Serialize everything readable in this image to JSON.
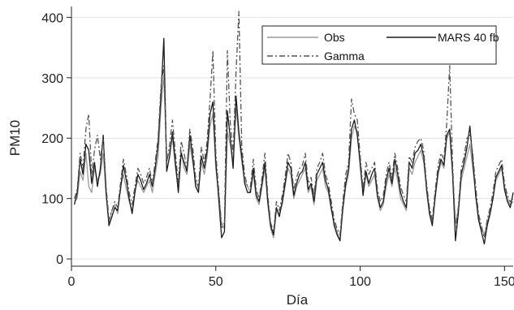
{
  "chart_data": {
    "type": "line",
    "xlabel": "Día",
    "ylabel": "PM10",
    "xlim": [
      0,
      153
    ],
    "ylim": [
      -12,
      418
    ],
    "xticks": [
      0,
      50,
      100,
      150
    ],
    "yticks": [
      0,
      100,
      200,
      300,
      400
    ],
    "grid": "horizontal",
    "legend_position": "top-right",
    "series": [
      {
        "name": "Obs",
        "color": "#9a9a9a",
        "dash": "solid",
        "x": [
          1,
          2,
          3,
          4,
          5,
          6,
          7,
          8,
          9,
          10,
          11,
          12,
          13,
          14,
          15,
          16,
          17,
          18,
          19,
          20,
          21,
          22,
          23,
          24,
          25,
          26,
          27,
          28,
          29,
          30,
          31,
          32,
          33,
          34,
          35,
          36,
          37,
          38,
          39,
          40,
          41,
          42,
          43,
          44,
          45,
          46,
          47,
          48,
          49,
          50,
          51,
          52,
          53,
          54,
          55,
          56,
          57,
          58,
          59,
          60,
          61,
          62,
          63,
          64,
          65,
          66,
          67,
          68,
          69,
          70,
          71,
          72,
          73,
          74,
          75,
          76,
          77,
          78,
          79,
          80,
          81,
          82,
          83,
          84,
          85,
          86,
          87,
          88,
          89,
          90,
          91,
          92,
          93,
          94,
          95,
          96,
          97,
          98,
          99,
          100,
          101,
          102,
          103,
          104,
          105,
          106,
          107,
          108,
          109,
          110,
          111,
          112,
          113,
          114,
          115,
          116,
          117,
          118,
          119,
          120,
          121,
          122,
          123,
          124,
          125,
          126,
          127,
          128,
          129,
          130,
          131,
          132,
          133,
          134,
          135,
          136,
          137,
          138,
          139,
          140,
          141,
          142,
          143,
          144,
          145,
          146,
          147,
          148,
          149,
          150,
          151,
          152,
          153
        ],
        "values": [
          95,
          100,
          145,
          130,
          175,
          120,
          110,
          150,
          130,
          140,
          175,
          105,
          60,
          80,
          90,
          75,
          120,
          140,
          115,
          95,
          80,
          115,
          130,
          120,
          110,
          120,
          130,
          110,
          140,
          170,
          250,
          305,
          160,
          180,
          200,
          150,
          120,
          180,
          150,
          140,
          190,
          160,
          130,
          115,
          160,
          140,
          170,
          220,
          240,
          150,
          110,
          60,
          50,
          210,
          190,
          160,
          250,
          200,
          160,
          130,
          120,
          110,
          140,
          100,
          90,
          120,
          150,
          90,
          50,
          35,
          80,
          75,
          90,
          120,
          150,
          140,
          100,
          120,
          130,
          140,
          150,
          110,
          120,
          90,
          130,
          140,
          150,
          120,
          110,
          80,
          60,
          45,
          30,
          80,
          120,
          140,
          200,
          220,
          210,
          150,
          110,
          140,
          120,
          130,
          140,
          100,
          80,
          90,
          120,
          140,
          120,
          150,
          130,
          100,
          90,
          80,
          150,
          140,
          160,
          170,
          180,
          160,
          120,
          80,
          60,
          100,
          140,
          160,
          150,
          200,
          210,
          140,
          60,
          80,
          130,
          150,
          170,
          190,
          150,
          110,
          70,
          50,
          40,
          60,
          80,
          100,
          130,
          140,
          150,
          120,
          100,
          90,
          95
        ]
      },
      {
        "name": "MARS 40 fb",
        "color": "#1a1a1a",
        "dash": "solid",
        "x": [
          1,
          2,
          3,
          4,
          5,
          6,
          7,
          8,
          9,
          10,
          11,
          12,
          13,
          14,
          15,
          16,
          17,
          18,
          19,
          20,
          21,
          22,
          23,
          24,
          25,
          26,
          27,
          28,
          29,
          30,
          31,
          32,
          33,
          34,
          35,
          36,
          37,
          38,
          39,
          40,
          41,
          42,
          43,
          44,
          45,
          46,
          47,
          48,
          49,
          50,
          51,
          52,
          53,
          54,
          55,
          56,
          57,
          58,
          59,
          60,
          61,
          62,
          63,
          64,
          65,
          66,
          67,
          68,
          69,
          70,
          71,
          72,
          73,
          74,
          75,
          76,
          77,
          78,
          79,
          80,
          81,
          82,
          83,
          84,
          85,
          86,
          87,
          88,
          89,
          90,
          91,
          92,
          93,
          94,
          95,
          96,
          97,
          98,
          99,
          100,
          101,
          102,
          103,
          104,
          105,
          106,
          107,
          108,
          109,
          110,
          111,
          112,
          113,
          114,
          115,
          116,
          117,
          118,
          119,
          120,
          121,
          122,
          123,
          124,
          125,
          126,
          127,
          128,
          129,
          130,
          131,
          132,
          133,
          134,
          135,
          136,
          137,
          138,
          139,
          140,
          141,
          142,
          143,
          144,
          145,
          146,
          147,
          148,
          149,
          150,
          151,
          152,
          153
        ],
        "values": [
          90,
          110,
          165,
          140,
          190,
          180,
          125,
          160,
          120,
          150,
          205,
          110,
          55,
          70,
          85,
          80,
          115,
          155,
          130,
          100,
          75,
          110,
          140,
          130,
          115,
          125,
          140,
          120,
          150,
          190,
          270,
          365,
          145,
          170,
          210,
          160,
          110,
          175,
          160,
          145,
          205,
          170,
          120,
          110,
          170,
          150,
          180,
          240,
          260,
          160,
          100,
          35,
          45,
          245,
          200,
          150,
          270,
          210,
          170,
          125,
          110,
          110,
          150,
          105,
          95,
          125,
          160,
          95,
          55,
          40,
          85,
          70,
          95,
          125,
          160,
          150,
          105,
          125,
          140,
          145,
          160,
          115,
          125,
          95,
          140,
          150,
          160,
          130,
          115,
          85,
          55,
          40,
          30,
          85,
          125,
          150,
          215,
          230,
          205,
          160,
          105,
          145,
          125,
          140,
          150,
          105,
          85,
          95,
          130,
          150,
          125,
          165,
          140,
          110,
          95,
          85,
          160,
          150,
          175,
          180,
          190,
          170,
          115,
          75,
          55,
          105,
          145,
          165,
          155,
          205,
          215,
          145,
          30,
          75,
          140,
          160,
          185,
          220,
          165,
          105,
          65,
          45,
          25,
          55,
          75,
          100,
          135,
          145,
          155,
          115,
          95,
          85,
          110
        ]
      },
      {
        "name": "Gamma",
        "color": "#555555",
        "dash": "dashdot",
        "x": [
          1,
          2,
          3,
          4,
          5,
          6,
          7,
          8,
          9,
          10,
          11,
          12,
          13,
          14,
          15,
          16,
          17,
          18,
          19,
          20,
          21,
          22,
          23,
          24,
          25,
          26,
          27,
          28,
          29,
          30,
          31,
          32,
          33,
          34,
          35,
          36,
          37,
          38,
          39,
          40,
          41,
          42,
          43,
          44,
          45,
          46,
          47,
          48,
          49,
          50,
          51,
          52,
          53,
          54,
          55,
          56,
          57,
          58,
          59,
          60,
          61,
          62,
          63,
          64,
          65,
          66,
          67,
          68,
          69,
          70,
          71,
          72,
          73,
          74,
          75,
          76,
          77,
          78,
          79,
          80,
          81,
          82,
          83,
          84,
          85,
          86,
          87,
          88,
          89,
          90,
          91,
          92,
          93,
          94,
          95,
          96,
          97,
          98,
          99,
          100,
          101,
          102,
          103,
          104,
          105,
          106,
          107,
          108,
          109,
          110,
          111,
          112,
          113,
          114,
          115,
          116,
          117,
          118,
          119,
          120,
          121,
          122,
          123,
          124,
          125,
          126,
          127,
          128,
          129,
          130,
          131,
          132,
          133,
          134,
          135,
          136,
          137,
          138,
          139,
          140,
          141,
          142,
          143,
          144,
          145,
          146,
          147,
          148,
          149,
          150,
          151,
          152,
          153
        ],
        "values": [
          100,
          115,
          175,
          150,
          215,
          240,
          140,
          180,
          205,
          165,
          200,
          120,
          65,
          80,
          95,
          85,
          125,
          165,
          140,
          110,
          90,
          120,
          150,
          140,
          125,
          135,
          150,
          125,
          160,
          200,
          285,
          320,
          160,
          190,
          230,
          175,
          125,
          195,
          175,
          150,
          215,
          185,
          135,
          120,
          185,
          160,
          195,
          265,
          345,
          175,
          115,
          50,
          60,
          345,
          225,
          175,
          310,
          410,
          185,
          140,
          120,
          120,
          165,
          115,
          100,
          135,
          175,
          105,
          60,
          45,
          95,
          80,
          105,
          135,
          175,
          160,
          115,
          135,
          150,
          155,
          175,
          125,
          135,
          105,
          150,
          160,
          175,
          140,
          125,
          95,
          65,
          50,
          40,
          95,
          140,
          160,
          265,
          240,
          230,
          170,
          115,
          160,
          140,
          150,
          160,
          115,
          95,
          105,
          140,
          160,
          135,
          175,
          150,
          120,
          105,
          95,
          170,
          160,
          185,
          195,
          200,
          180,
          125,
          85,
          65,
          115,
          155,
          175,
          165,
          225,
          320,
          160,
          50,
          85,
          150,
          170,
          200,
          205,
          175,
          120,
          75,
          55,
          35,
          65,
          85,
          110,
          145,
          155,
          165,
          125,
          105,
          95,
          100
        ]
      }
    ]
  }
}
